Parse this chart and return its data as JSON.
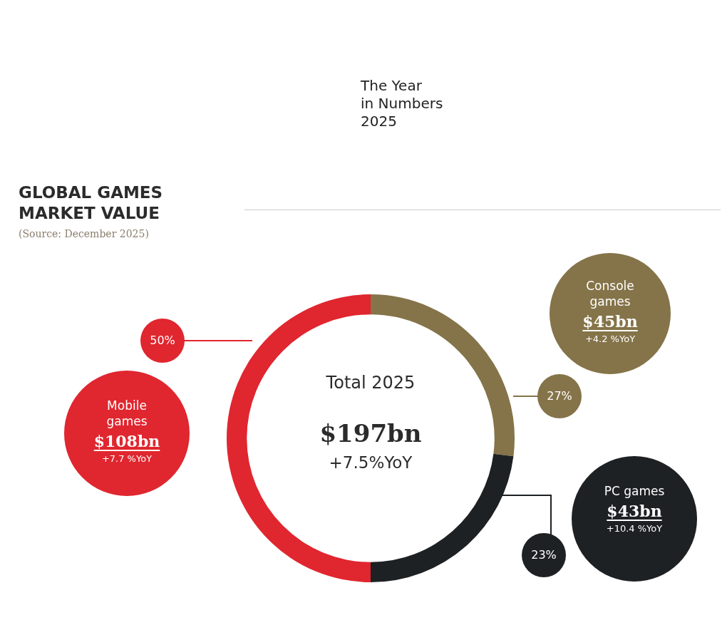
{
  "chart_data": {
    "type": "donut",
    "title": "GLOBAL GAMES\nMARKET VALUE",
    "subtitle": "The Year\nin Numbers\n2025",
    "categories": [
      "Console\ngames",
      "PC games",
      "Mobile\ngames"
    ],
    "values": [
      27,
      23,
      50
    ],
    "colors": [
      "#857449",
      "#1e2123",
      "#e0262f"
    ],
    "value_labels": [
      "27%",
      "23%",
      "50%"
    ],
    "annotations": [
      "$45bn",
      "+4.2 %YoY",
      "$43bn",
      "+10.4 %YoY",
      "$108bn",
      "+7.7 %YoY",
      "Total 2025",
      "$197bn",
      "+7.5%YoY",
      "(Source: December 2025)"
    ]
  }
}
